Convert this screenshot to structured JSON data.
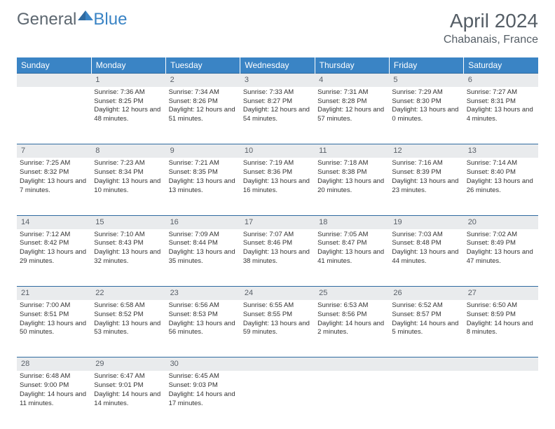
{
  "logo": {
    "text1": "General",
    "text2": "Blue"
  },
  "title": "April 2024",
  "location": "Chabanais, France",
  "colors": {
    "header_bg": "#3a84c5",
    "header_text": "#ffffff",
    "daynum_bg": "#e9ebed",
    "daynum_text": "#5a6068",
    "row_border": "#2f6aa0",
    "body_text": "#333333",
    "logo_gray": "#5d6770",
    "logo_blue": "#3a84c5"
  },
  "weekdays": [
    "Sunday",
    "Monday",
    "Tuesday",
    "Wednesday",
    "Thursday",
    "Friday",
    "Saturday"
  ],
  "weeks": [
    {
      "nums": [
        "",
        "1",
        "2",
        "3",
        "4",
        "5",
        "6"
      ],
      "cells": [
        "",
        "Sunrise: 7:36 AM\nSunset: 8:25 PM\nDaylight: 12 hours and 48 minutes.",
        "Sunrise: 7:34 AM\nSunset: 8:26 PM\nDaylight: 12 hours and 51 minutes.",
        "Sunrise: 7:33 AM\nSunset: 8:27 PM\nDaylight: 12 hours and 54 minutes.",
        "Sunrise: 7:31 AM\nSunset: 8:28 PM\nDaylight: 12 hours and 57 minutes.",
        "Sunrise: 7:29 AM\nSunset: 8:30 PM\nDaylight: 13 hours and 0 minutes.",
        "Sunrise: 7:27 AM\nSunset: 8:31 PM\nDaylight: 13 hours and 4 minutes."
      ]
    },
    {
      "nums": [
        "7",
        "8",
        "9",
        "10",
        "11",
        "12",
        "13"
      ],
      "cells": [
        "Sunrise: 7:25 AM\nSunset: 8:32 PM\nDaylight: 13 hours and 7 minutes.",
        "Sunrise: 7:23 AM\nSunset: 8:34 PM\nDaylight: 13 hours and 10 minutes.",
        "Sunrise: 7:21 AM\nSunset: 8:35 PM\nDaylight: 13 hours and 13 minutes.",
        "Sunrise: 7:19 AM\nSunset: 8:36 PM\nDaylight: 13 hours and 16 minutes.",
        "Sunrise: 7:18 AM\nSunset: 8:38 PM\nDaylight: 13 hours and 20 minutes.",
        "Sunrise: 7:16 AM\nSunset: 8:39 PM\nDaylight: 13 hours and 23 minutes.",
        "Sunrise: 7:14 AM\nSunset: 8:40 PM\nDaylight: 13 hours and 26 minutes."
      ]
    },
    {
      "nums": [
        "14",
        "15",
        "16",
        "17",
        "18",
        "19",
        "20"
      ],
      "cells": [
        "Sunrise: 7:12 AM\nSunset: 8:42 PM\nDaylight: 13 hours and 29 minutes.",
        "Sunrise: 7:10 AM\nSunset: 8:43 PM\nDaylight: 13 hours and 32 minutes.",
        "Sunrise: 7:09 AM\nSunset: 8:44 PM\nDaylight: 13 hours and 35 minutes.",
        "Sunrise: 7:07 AM\nSunset: 8:46 PM\nDaylight: 13 hours and 38 minutes.",
        "Sunrise: 7:05 AM\nSunset: 8:47 PM\nDaylight: 13 hours and 41 minutes.",
        "Sunrise: 7:03 AM\nSunset: 8:48 PM\nDaylight: 13 hours and 44 minutes.",
        "Sunrise: 7:02 AM\nSunset: 8:49 PM\nDaylight: 13 hours and 47 minutes."
      ]
    },
    {
      "nums": [
        "21",
        "22",
        "23",
        "24",
        "25",
        "26",
        "27"
      ],
      "cells": [
        "Sunrise: 7:00 AM\nSunset: 8:51 PM\nDaylight: 13 hours and 50 minutes.",
        "Sunrise: 6:58 AM\nSunset: 8:52 PM\nDaylight: 13 hours and 53 minutes.",
        "Sunrise: 6:56 AM\nSunset: 8:53 PM\nDaylight: 13 hours and 56 minutes.",
        "Sunrise: 6:55 AM\nSunset: 8:55 PM\nDaylight: 13 hours and 59 minutes.",
        "Sunrise: 6:53 AM\nSunset: 8:56 PM\nDaylight: 14 hours and 2 minutes.",
        "Sunrise: 6:52 AM\nSunset: 8:57 PM\nDaylight: 14 hours and 5 minutes.",
        "Sunrise: 6:50 AM\nSunset: 8:59 PM\nDaylight: 14 hours and 8 minutes."
      ]
    },
    {
      "nums": [
        "28",
        "29",
        "30",
        "",
        "",
        "",
        ""
      ],
      "cells": [
        "Sunrise: 6:48 AM\nSunset: 9:00 PM\nDaylight: 14 hours and 11 minutes.",
        "Sunrise: 6:47 AM\nSunset: 9:01 PM\nDaylight: 14 hours and 14 minutes.",
        "Sunrise: 6:45 AM\nSunset: 9:03 PM\nDaylight: 14 hours and 17 minutes.",
        "",
        "",
        "",
        ""
      ]
    }
  ]
}
